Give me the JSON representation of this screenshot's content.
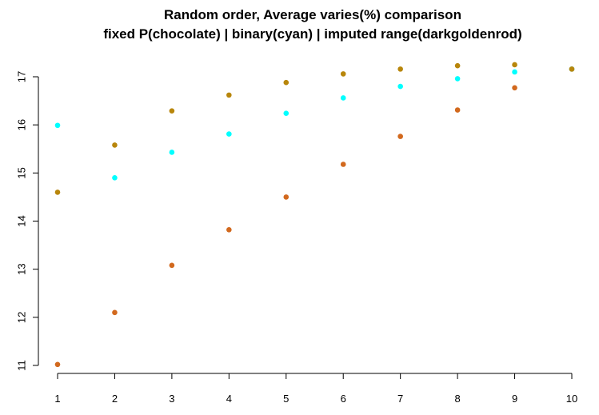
{
  "chart_data": {
    "type": "scatter",
    "title": "Random order, Average varies(%) comparison",
    "subtitle": "fixed P(chocolate) | binary(cyan) | imputed range(darkgoldenrod)",
    "xlabel": "",
    "ylabel": "",
    "xlim": [
      1,
      10
    ],
    "ylim": [
      11,
      17
    ],
    "x_ticks": [
      1,
      2,
      3,
      4,
      5,
      6,
      7,
      8,
      9,
      10
    ],
    "y_ticks": [
      11,
      12,
      13,
      14,
      15,
      16,
      17
    ],
    "grid": false,
    "series": [
      {
        "color": "#D2691E",
        "x": [
          1,
          2,
          3,
          4,
          5,
          6,
          7,
          8,
          9,
          10
        ],
        "y": [
          11.02,
          12.1,
          13.08,
          13.82,
          14.5,
          15.18,
          15.76,
          16.31,
          16.77,
          17.16
        ]
      },
      {
        "color": "#00FFFF",
        "x": [
          1,
          2,
          3,
          4,
          5,
          6,
          7,
          8,
          9,
          10
        ],
        "y": [
          15.99,
          14.9,
          15.43,
          15.81,
          16.24,
          16.56,
          16.8,
          16.96,
          17.1,
          17.16
        ]
      },
      {
        "color": "#B8860B",
        "x": [
          1,
          2,
          3,
          4,
          5,
          6,
          7,
          8,
          9,
          10
        ],
        "y": [
          14.6,
          15.58,
          16.29,
          16.62,
          16.88,
          17.06,
          17.16,
          17.23,
          17.25,
          17.16
        ]
      }
    ]
  }
}
